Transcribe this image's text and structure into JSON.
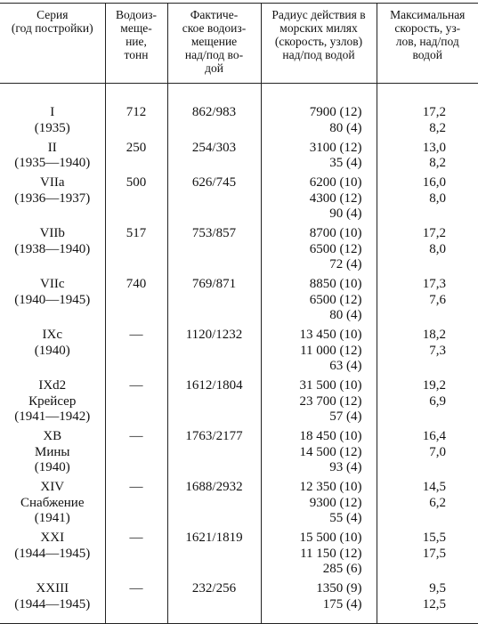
{
  "table": {
    "header": [
      [
        "Серия",
        "(год постройки)"
      ],
      [
        "Водоиз-",
        "меще-",
        "ние,",
        "тонн"
      ],
      [
        "Фактиче-",
        "ское водоиз-",
        "мещение",
        "над/под во-",
        "дой"
      ],
      [
        "Радиус действия в",
        "морских милях",
        "(скорость, узлов)",
        "над/под водой"
      ],
      [
        "Максимальная",
        "скорость, уз-",
        "лов, над/под",
        "водой"
      ]
    ],
    "rows": [
      [
        [
          "I",
          "(1935)"
        ],
        [
          "712"
        ],
        [
          "862/983"
        ],
        [
          "7900 (12)",
          "80 (4)"
        ],
        [
          "17,2",
          "8,2"
        ]
      ],
      [
        [
          "II",
          "(1935—1940)"
        ],
        [
          "250"
        ],
        [
          "254/303"
        ],
        [
          "3100 (12)",
          "35 (4)"
        ],
        [
          "13,0",
          "8,2"
        ]
      ],
      [
        [
          "VIIa",
          "(1936—1937)"
        ],
        [
          "500"
        ],
        [
          "626/745"
        ],
        [
          "6200 (10)",
          "4300 (12)",
          "90 (4)"
        ],
        [
          "16,0",
          "8,0"
        ]
      ],
      [
        [
          "VIIb",
          "(1938—1940)"
        ],
        [
          "517"
        ],
        [
          "753/857"
        ],
        [
          "8700 (10)",
          "6500 (12)",
          "72 (4)"
        ],
        [
          "17,2",
          "8,0"
        ]
      ],
      [
        [
          "VIIc",
          "(1940—1945)"
        ],
        [
          "740"
        ],
        [
          "769/871"
        ],
        [
          "8850 (10)",
          "6500 (12)",
          "80 (4)"
        ],
        [
          "17,3",
          "7,6"
        ]
      ],
      [
        [
          "IXc",
          "(1940)"
        ],
        [
          "—"
        ],
        [
          "1120/1232"
        ],
        [
          "13 450 (10)",
          "11 000 (12)",
          "63 (4)"
        ],
        [
          "18,2",
          "7,3"
        ]
      ],
      [
        [
          "IXd2",
          "Крейсер",
          "(1941—1942)"
        ],
        [
          "—"
        ],
        [
          "1612/1804"
        ],
        [
          "31 500 (10)",
          "23 700 (12)",
          "57 (4)"
        ],
        [
          "19,2",
          "6,9"
        ]
      ],
      [
        [
          "XB",
          "Мины",
          "(1940)"
        ],
        [
          "—"
        ],
        [
          "1763/2177"
        ],
        [
          "18 450 (10)",
          "14 500 (12)",
          "93 (4)"
        ],
        [
          "16,4",
          "7,0"
        ]
      ],
      [
        [
          "XIV",
          "Снабжение",
          "(1941)"
        ],
        [
          "—"
        ],
        [
          "1688/2932"
        ],
        [
          "12 350 (10)",
          "9300 (12)",
          "55 (4)"
        ],
        [
          "14,5",
          "6,2"
        ]
      ],
      [
        [
          "XXI",
          "(1944—1945)"
        ],
        [
          "—"
        ],
        [
          "1621/1819"
        ],
        [
          "15 500 (10)",
          "11 150 (12)",
          "285 (6)"
        ],
        [
          "15,5",
          "17,5"
        ]
      ],
      [
        [
          "XXIII",
          "(1944—1945)"
        ],
        [
          "—"
        ],
        [
          "232/256"
        ],
        [
          "1350 (9)",
          "175 (4)"
        ],
        [
          "9,5",
          "12,5"
        ]
      ]
    ]
  }
}
